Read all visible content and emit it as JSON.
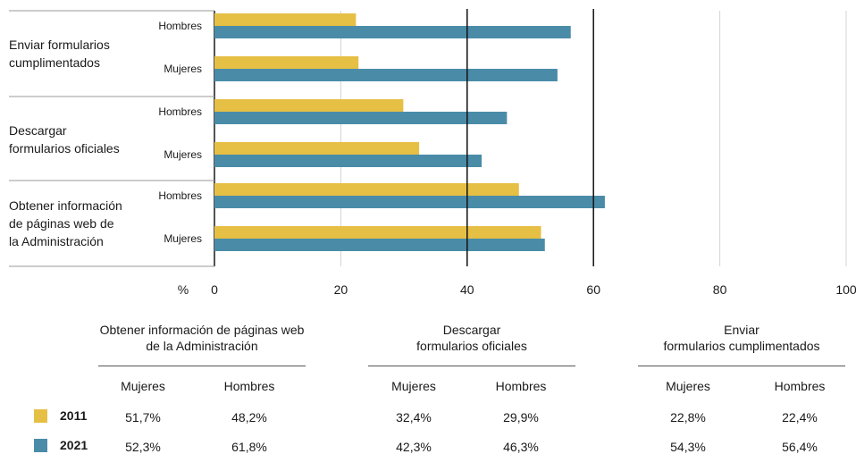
{
  "colors": {
    "y2011": "#e6bf45",
    "y2021": "#4a8ca8"
  },
  "chart_data": {
    "type": "bar",
    "orientation": "horizontal",
    "x_unit_label": "%",
    "xlim": [
      0,
      100
    ],
    "x_ticks": [
      0,
      20,
      40,
      60,
      80,
      100
    ],
    "reference_lines": [
      40,
      60
    ],
    "groups": [
      {
        "label": "Enviar formularios cumplimentados",
        "label_lines": [
          "Enviar formularios",
          "cumplimentados"
        ],
        "rows": [
          {
            "label": "Hombres",
            "v2011": 22.4,
            "v2021": 56.4
          },
          {
            "label": "Mujeres",
            "v2011": 22.8,
            "v2021": 54.3
          }
        ]
      },
      {
        "label": "Descargar formularios oficiales",
        "label_lines": [
          "Descargar",
          "formularios oficiales"
        ],
        "rows": [
          {
            "label": "Hombres",
            "v2011": 29.9,
            "v2021": 46.3
          },
          {
            "label": "Mujeres",
            "v2011": 32.4,
            "v2021": 42.3
          }
        ]
      },
      {
        "label": "Obtener información de páginas web de la Administración",
        "label_lines": [
          "Obtener información",
          "de páginas web de",
          "la Administración"
        ],
        "rows": [
          {
            "label": "Hombres",
            "v2011": 48.2,
            "v2021": 61.8
          },
          {
            "label": "Mujeres",
            "v2011": 51.7,
            "v2021": 52.3
          }
        ]
      }
    ]
  },
  "table": {
    "groups": [
      {
        "title_lines": [
          "Obtener información de páginas web",
          "de la Administración"
        ]
      },
      {
        "title_lines": [
          "Descargar",
          "formularios oficiales"
        ]
      },
      {
        "title_lines": [
          "Enviar",
          "formularios cumplimentados"
        ]
      }
    ],
    "col_headers": [
      "Mujeres",
      "Hombres",
      "Mujeres",
      "Hombres",
      "Mujeres",
      "Hombres"
    ],
    "rows": [
      {
        "year": "2011",
        "values": [
          "51,7%",
          "48,2%",
          "32,4%",
          "29,9%",
          "22,8%",
          "22,4%"
        ]
      },
      {
        "year": "2021",
        "values": [
          "52,3%",
          "61,8%",
          "42,3%",
          "46,3%",
          "54,3%",
          "56,4%"
        ]
      }
    ]
  }
}
